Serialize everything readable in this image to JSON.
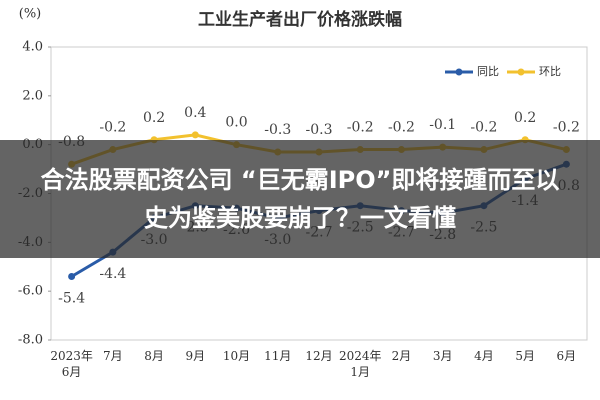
{
  "chart_data": {
    "type": "line",
    "title": "工业生产者出厂价格涨跌幅",
    "y_label": "(%)",
    "categories": [
      "2023年\n6月",
      "7月",
      "8月",
      "9月",
      "10月",
      "11月",
      "12月",
      "2024年\n1月",
      "2月",
      "3月",
      "4月",
      "5月",
      "6月"
    ],
    "series": [
      {
        "name": "同比",
        "color": "#2a5ca8",
        "values": [
          -5.4,
          -4.4,
          -3.0,
          -2.5,
          -2.6,
          -3.0,
          -2.7,
          -2.5,
          -2.7,
          -2.8,
          -2.5,
          -1.4,
          -0.8
        ],
        "value_labels": [
          "-5.4",
          "-4.4",
          "-3.0",
          "-2.5",
          "-2.6",
          "-3.0",
          "-2.7",
          "-2.5",
          "-2.7",
          "-2.8",
          "-2.5",
          "-1.4",
          "-0.8"
        ]
      },
      {
        "name": "环比",
        "color": "#f2c12e",
        "values": [
          -0.8,
          -0.2,
          0.2,
          0.4,
          0.0,
          -0.3,
          -0.3,
          -0.2,
          -0.2,
          -0.1,
          -0.2,
          0.2,
          -0.2
        ],
        "value_labels": [
          "-0.8",
          "-0.2",
          "0.2",
          "0.4",
          "0.0",
          "-0.3",
          "-0.3",
          "-0.2",
          "-0.2",
          "-0.1",
          "-0.2",
          "0.2",
          "-0.2"
        ]
      }
    ],
    "ylim": [
      -8,
      4
    ],
    "yticks": [
      {
        "value": 4,
        "label": "4.0"
      },
      {
        "value": 2,
        "label": "2.0"
      },
      {
        "value": 0,
        "label": "0.0"
      },
      {
        "value": -2,
        "label": "-2.0"
      },
      {
        "value": -4,
        "label": "-4.0"
      },
      {
        "value": -6,
        "label": "-6.0"
      },
      {
        "value": -8,
        "label": "-8.0"
      }
    ],
    "legend": "top-right"
  },
  "banner": {
    "text": "合法股票配资公司 “巨无霸IPO”即将接踵而至以史为鉴美股要崩了？一文看懂"
  }
}
